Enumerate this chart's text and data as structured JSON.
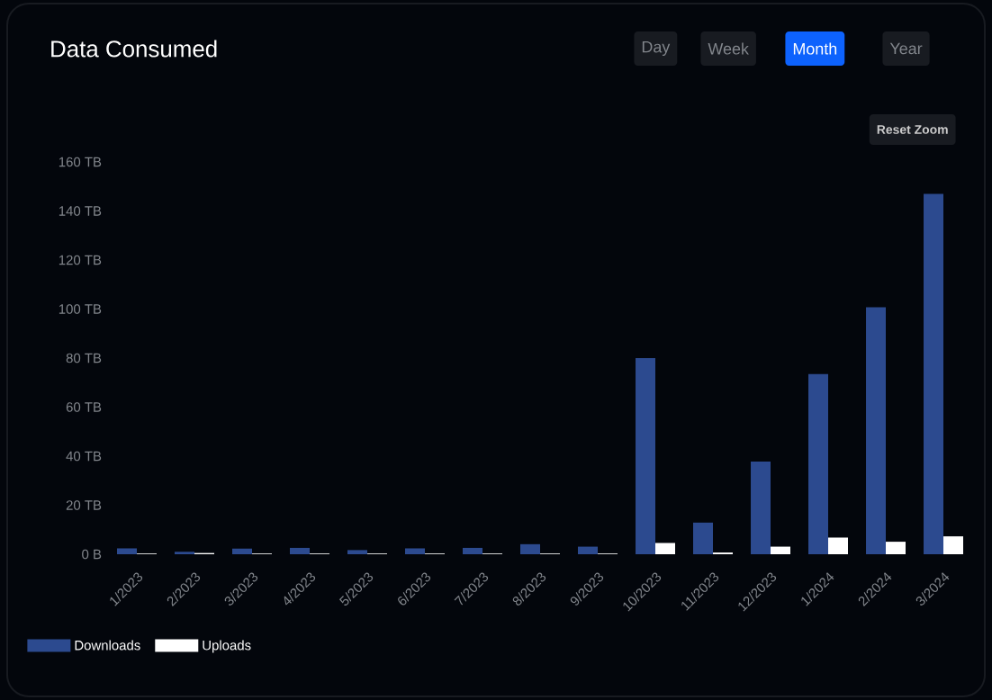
{
  "chart_data": {
    "type": "bar",
    "title": "Data Consumed",
    "annotations": [
      "Day",
      "Week",
      "Month",
      "Year",
      "Reset Zoom"
    ],
    "categories": [
      "1/2023",
      "2/2023",
      "3/2023",
      "4/2023",
      "5/2023",
      "6/2023",
      "7/2023",
      "8/2023",
      "9/2023",
      "10/2023",
      "11/2023",
      "12/2023",
      "1/2024",
      "2/2024",
      "3/2024"
    ],
    "series": [
      {
        "name": "Downloads",
        "color": "#2c4a8f",
        "values": [
          2.4,
          1.0,
          2.3,
          2.6,
          1.7,
          2.4,
          2.6,
          4.1,
          3.1,
          80,
          12.9,
          37.8,
          73.5,
          100.7,
          147
        ]
      },
      {
        "name": "Uploads",
        "color": "#ffffff",
        "values": [
          0.3,
          0.5,
          0.3,
          0.3,
          0.3,
          0.3,
          0.3,
          0.3,
          0.3,
          4.6,
          0.7,
          3.1,
          6.8,
          5.1,
          7.3
        ]
      }
    ],
    "ylim": [
      0,
      160
    ],
    "yticks": [
      {
        "value": 0,
        "label": "0 B"
      },
      {
        "value": 20,
        "label": "20 TB"
      },
      {
        "value": 40,
        "label": "40 TB"
      },
      {
        "value": 60,
        "label": "60 TB"
      },
      {
        "value": 80,
        "label": "80 TB"
      },
      {
        "value": 100,
        "label": "100 TB"
      },
      {
        "value": 120,
        "label": "120 TB"
      },
      {
        "value": 140,
        "label": "140 TB"
      },
      {
        "value": 160,
        "label": "160 TB"
      }
    ],
    "grid": false,
    "legend": "bottom left"
  }
}
